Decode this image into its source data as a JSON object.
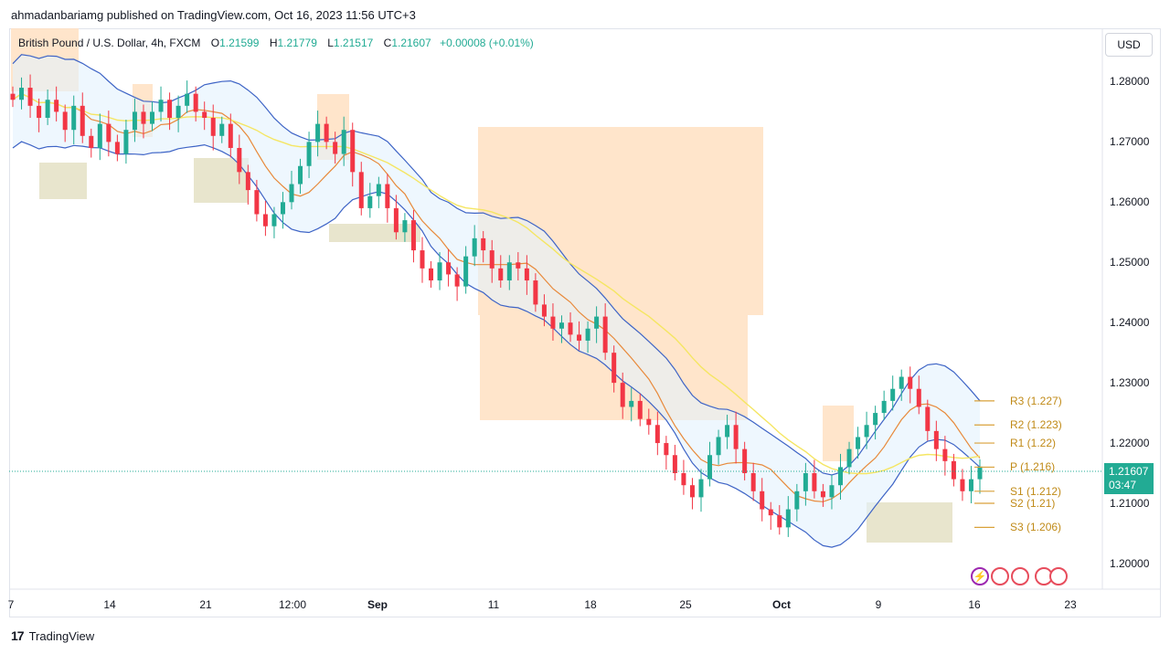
{
  "header": {
    "published": "ahmadanbariamg published on TradingView.com, Oct 16, 2023 11:56 UTC+3"
  },
  "legend": {
    "symbol": "British Pound / U.S. Dollar, 4h, FXCM",
    "o_key": "O",
    "o": "1.21599",
    "h_key": "H",
    "h": "1.21779",
    "l_key": "L",
    "l": "1.21517",
    "c_key": "C",
    "c": "1.21607",
    "change": "+0.00008 (+0.01%)"
  },
  "currency_button": "USD",
  "price_tag": {
    "price": "1.21607",
    "countdown": "03:47"
  },
  "footer": {
    "brand": "TradingView",
    "logo": "17"
  },
  "colors": {
    "up": "#22ab94",
    "down": "#f23645",
    "bb": "#3e64c6",
    "ma_orange": "#e8893a",
    "ma_yellow": "#f5e663",
    "zone_orange": "#ffe0c2",
    "zone_olive": "#e6e2c8",
    "pivot": "#d9a13a"
  },
  "icons": [
    "lightning-icon",
    "uk-flag-icon",
    "uk-flag-icon",
    "us-flag-icon",
    "uk-flag-icon"
  ],
  "chart_data": {
    "type": "candlestick",
    "y_ticks": [
      "1.28000",
      "1.27000",
      "1.26000",
      "1.25000",
      "1.24000",
      "1.23000",
      "1.22000",
      "1.21000",
      "1.20000"
    ],
    "ylim": [
      1.1965,
      1.2875
    ],
    "x_ticks": [
      {
        "label": "7",
        "bold": false
      },
      {
        "label": "14",
        "bold": false
      },
      {
        "label": "21",
        "bold": false
      },
      {
        "label": "12:00",
        "bold": false
      },
      {
        "label": "Sep",
        "bold": true
      },
      {
        "label": "11",
        "bold": false
      },
      {
        "label": "18",
        "bold": false
      },
      {
        "label": "25",
        "bold": false
      },
      {
        "label": "Oct",
        "bold": true
      },
      {
        "label": "9",
        "bold": false
      },
      {
        "label": "16",
        "bold": false
      },
      {
        "label": "23",
        "bold": false
      }
    ],
    "close_path": [
      1.277,
      1.279,
      1.276,
      1.274,
      1.277,
      1.275,
      1.272,
      1.276,
      1.271,
      1.269,
      1.273,
      1.27,
      1.268,
      1.272,
      1.275,
      1.273,
      1.275,
      1.277,
      1.274,
      1.276,
      1.278,
      1.275,
      1.274,
      1.271,
      1.273,
      1.269,
      1.265,
      1.262,
      1.258,
      1.256,
      1.258,
      1.26,
      1.263,
      1.266,
      1.27,
      1.273,
      1.27,
      1.268,
      1.272,
      1.265,
      1.259,
      1.261,
      1.263,
      1.259,
      1.255,
      1.257,
      1.252,
      1.249,
      1.247,
      1.25,
      1.248,
      1.246,
      1.251,
      1.254,
      1.252,
      1.249,
      1.247,
      1.25,
      1.249,
      1.247,
      1.243,
      1.241,
      1.239,
      1.24,
      1.238,
      1.237,
      1.239,
      1.241,
      1.235,
      1.23,
      1.226,
      1.227,
      1.224,
      1.223,
      1.22,
      1.218,
      1.215,
      1.213,
      1.211,
      1.214,
      1.218,
      1.221,
      1.223,
      1.219,
      1.215,
      1.212,
      1.209,
      1.208,
      1.206,
      1.209,
      1.212,
      1.215,
      1.212,
      1.211,
      1.213,
      1.216,
      1.219,
      1.221,
      1.223,
      1.225,
      1.227,
      1.229,
      1.231,
      1.229,
      1.226,
      1.222,
      1.219,
      1.217,
      1.214,
      1.212,
      1.214,
      1.2161
    ],
    "pivots": [
      {
        "label": "R3 (1.227)",
        "value": 1.227
      },
      {
        "label": "R2 (1.223)",
        "value": 1.223
      },
      {
        "label": "R1 (1.22)",
        "value": 1.22
      },
      {
        "label": "P (1.216)",
        "value": 1.216
      },
      {
        "label": "S1 (1.212)",
        "value": 1.212
      },
      {
        "label": "S2 (1.21)",
        "value": 1.21
      },
      {
        "label": "S3 (1.206)",
        "value": 1.206
      }
    ],
    "last_price": 1.21607,
    "indicators": [
      "Bollinger Bands",
      "Moving Average",
      "Moving Average",
      "Pivot Points"
    ]
  }
}
